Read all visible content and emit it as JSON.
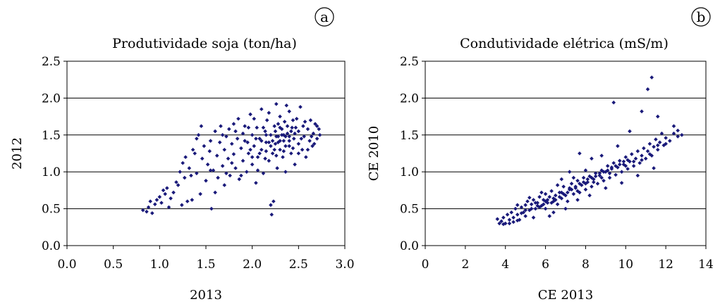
{
  "chart_data": [
    {
      "id": "a",
      "badge": "a",
      "type": "scatter",
      "title": "Produtividade soja (ton/ha)",
      "xlabel": "2013",
      "ylabel": "2012",
      "xlim": [
        0.0,
        3.0
      ],
      "ylim": [
        0.0,
        2.5
      ],
      "xticks": [
        "0.0",
        "0.5",
        "1.0",
        "1.5",
        "2.0",
        "2.5",
        "3.0"
      ],
      "yticks": [
        "0.0",
        "0.5",
        "1.0",
        "1.5",
        "2.0",
        "2.5"
      ],
      "grid": "horizontal",
      "legend": "none",
      "marker_color": "#1a1a7a",
      "points": [
        [
          0.82,
          0.48
        ],
        [
          0.86,
          0.46
        ],
        [
          0.88,
          0.52
        ],
        [
          0.9,
          0.6
        ],
        [
          0.92,
          0.44
        ],
        [
          0.95,
          0.56
        ],
        [
          0.97,
          0.62
        ],
        [
          1.0,
          0.66
        ],
        [
          1.02,
          0.58
        ],
        [
          1.04,
          0.75
        ],
        [
          1.06,
          0.7
        ],
        [
          1.08,
          0.78
        ],
        [
          1.1,
          0.52
        ],
        [
          1.12,
          0.64
        ],
        [
          1.15,
          0.72
        ],
        [
          1.18,
          0.86
        ],
        [
          1.2,
          0.82
        ],
        [
          1.22,
          1.0
        ],
        [
          1.24,
          0.55
        ],
        [
          1.25,
          1.12
        ],
        [
          1.27,
          0.92
        ],
        [
          1.28,
          1.2
        ],
        [
          1.3,
          0.6
        ],
        [
          1.32,
          1.05
        ],
        [
          1.34,
          0.95
        ],
        [
          1.36,
          1.3
        ],
        [
          1.38,
          1.25
        ],
        [
          1.4,
          0.98
        ],
        [
          1.4,
          1.45
        ],
        [
          1.42,
          1.5
        ],
        [
          1.44,
          0.7
        ],
        [
          1.46,
          1.18
        ],
        [
          1.48,
          1.35
        ],
        [
          1.5,
          0.88
        ],
        [
          1.52,
          1.1
        ],
        [
          1.54,
          1.28
        ],
        [
          1.55,
          1.42
        ],
        [
          1.56,
          0.5
        ],
        [
          1.58,
          1.02
        ],
        [
          1.6,
          1.55
        ],
        [
          1.62,
          1.22
        ],
        [
          1.63,
          0.92
        ],
        [
          1.65,
          1.4
        ],
        [
          1.66,
          1.62
        ],
        [
          1.68,
          1.08
        ],
        [
          1.7,
          1.3
        ],
        [
          1.7,
          0.82
        ],
        [
          1.72,
          1.48
        ],
        [
          1.74,
          1.18
        ],
        [
          1.75,
          1.58
        ],
        [
          1.76,
          0.95
        ],
        [
          1.78,
          1.38
        ],
        [
          1.8,
          1.24
        ],
        [
          1.8,
          1.65
        ],
        [
          1.82,
          1.05
        ],
        [
          1.84,
          1.45
        ],
        [
          1.85,
          1.72
        ],
        [
          1.86,
          0.9
        ],
        [
          1.88,
          1.32
        ],
        [
          1.9,
          1.52
        ],
        [
          1.9,
          1.15
        ],
        [
          1.92,
          1.62
        ],
        [
          1.94,
          1.0
        ],
        [
          1.95,
          1.4
        ],
        [
          1.96,
          1.25
        ],
        [
          1.98,
          1.78
        ],
        [
          2.0,
          1.1
        ],
        [
          2.0,
          1.5
        ],
        [
          2.02,
          1.35
        ],
        [
          2.04,
          0.85
        ],
        [
          2.05,
          1.6
        ],
        [
          2.06,
          1.2
        ],
        [
          2.08,
          1.45
        ],
        [
          2.1,
          1.85
        ],
        [
          2.1,
          1.3
        ],
        [
          2.12,
          0.98
        ],
        [
          2.14,
          1.55
        ],
        [
          2.15,
          1.4
        ],
        [
          2.16,
          1.7
        ],
        [
          2.18,
          1.15
        ],
        [
          2.2,
          1.5
        ],
        [
          2.2,
          0.55
        ],
        [
          2.21,
          0.42
        ],
        [
          2.22,
          1.25
        ],
        [
          2.23,
          0.6
        ],
        [
          2.24,
          1.62
        ],
        [
          2.25,
          1.38
        ],
        [
          2.26,
          1.92
        ],
        [
          2.27,
          1.05
        ],
        [
          2.28,
          1.48
        ],
        [
          2.3,
          1.3
        ],
        [
          2.3,
          1.75
        ],
        [
          2.32,
          1.58
        ],
        [
          2.33,
          1.2
        ],
        [
          2.34,
          1.42
        ],
        [
          2.35,
          1.68
        ],
        [
          2.36,
          1.0
        ],
        [
          2.38,
          1.52
        ],
        [
          2.4,
          1.35
        ],
        [
          2.4,
          1.82
        ],
        [
          2.42,
          1.25
        ],
        [
          2.43,
          1.6
        ],
        [
          2.45,
          1.45
        ],
        [
          2.46,
          1.1
        ],
        [
          2.48,
          1.72
        ],
        [
          2.5,
          1.38
        ],
        [
          2.5,
          1.55
        ],
        [
          2.52,
          1.88
        ],
        [
          2.54,
          1.3
        ],
        [
          2.55,
          1.62
        ],
        [
          2.56,
          1.48
        ],
        [
          2.58,
          1.2
        ],
        [
          2.6,
          1.58
        ],
        [
          2.62,
          1.42
        ],
        [
          2.63,
          1.7
        ],
        [
          2.65,
          1.35
        ],
        [
          2.66,
          1.52
        ],
        [
          2.68,
          1.65
        ],
        [
          2.7,
          1.45
        ],
        [
          2.72,
          1.58
        ],
        [
          1.35,
          0.62
        ],
        [
          1.45,
          1.62
        ],
        [
          1.55,
          1.02
        ],
        [
          1.6,
          0.72
        ],
        [
          1.68,
          1.5
        ],
        [
          1.72,
          0.98
        ],
        [
          1.78,
          1.12
        ],
        [
          1.82,
          1.55
        ],
        [
          1.88,
          0.95
        ],
        [
          1.92,
          1.42
        ],
        [
          1.96,
          1.6
        ],
        [
          2.02,
          1.72
        ],
        [
          2.06,
          1.02
        ],
        [
          2.12,
          1.6
        ],
        [
          2.15,
          1.28
        ],
        [
          2.18,
          1.8
        ],
        [
          2.22,
          1.42
        ],
        [
          2.26,
          1.22
        ],
        [
          2.3,
          1.6
        ],
        [
          2.34,
          1.28
        ],
        [
          2.37,
          1.9
        ],
        [
          2.4,
          1.48
        ],
        [
          2.44,
          1.32
        ],
        [
          2.47,
          1.6
        ],
        [
          2.5,
          1.25
        ],
        [
          2.53,
          1.45
        ],
        [
          2.57,
          1.68
        ],
        [
          2.6,
          1.3
        ],
        [
          2.64,
          1.48
        ],
        [
          2.67,
          1.38
        ],
        [
          2.7,
          1.62
        ],
        [
          2.73,
          1.5
        ],
        [
          2.15,
          1.5
        ],
        [
          2.2,
          1.35
        ],
        [
          2.25,
          1.55
        ],
        [
          2.28,
          1.4
        ],
        [
          2.32,
          1.5
        ],
        [
          2.36,
          1.35
        ],
        [
          2.38,
          1.62
        ],
        [
          2.42,
          1.55
        ],
        [
          2.08,
          1.25
        ],
        [
          2.1,
          1.42
        ],
        [
          2.14,
          1.18
        ],
        [
          2.18,
          1.4
        ],
        [
          2.24,
          1.3
        ],
        [
          2.28,
          1.65
        ],
        [
          2.34,
          1.5
        ],
        [
          2.44,
          1.7
        ],
        [
          1.98,
          1.3
        ],
        [
          2.0,
          1.2
        ],
        [
          2.04,
          1.45
        ],
        [
          2.26,
          1.48
        ],
        [
          2.3,
          1.42
        ],
        [
          2.36,
          1.48
        ],
        [
          2.4,
          1.42
        ],
        [
          2.46,
          1.52
        ]
      ]
    },
    {
      "id": "b",
      "badge": "b",
      "type": "scatter",
      "title": "Condutividade elétrica (mS/m)",
      "xlabel": "CE 2013",
      "ylabel": "CE 2010",
      "xlim": [
        0,
        14
      ],
      "ylim": [
        0.0,
        2.5
      ],
      "xticks": [
        "0",
        "2",
        "4",
        "6",
        "8",
        "10",
        "12",
        "14"
      ],
      "yticks": [
        "0.0",
        "0.5",
        "1.0",
        "1.5",
        "2.0",
        "2.5"
      ],
      "grid": "horizontal",
      "legend": "none",
      "marker_color": "#1a1a7a",
      "points": [
        [
          3.6,
          0.36
        ],
        [
          3.7,
          0.3
        ],
        [
          3.8,
          0.33
        ],
        [
          3.9,
          0.38
        ],
        [
          4.0,
          0.3
        ],
        [
          4.1,
          0.42
        ],
        [
          4.2,
          0.35
        ],
        [
          4.3,
          0.45
        ],
        [
          4.4,
          0.38
        ],
        [
          4.5,
          0.5
        ],
        [
          4.6,
          0.42
        ],
        [
          4.7,
          0.35
        ],
        [
          4.8,
          0.52
        ],
        [
          4.9,
          0.45
        ],
        [
          5.0,
          0.55
        ],
        [
          5.0,
          0.4
        ],
        [
          5.1,
          0.6
        ],
        [
          5.2,
          0.48
        ],
        [
          5.3,
          0.56
        ],
        [
          5.4,
          0.62
        ],
        [
          5.5,
          0.5
        ],
        [
          5.6,
          0.58
        ],
        [
          5.7,
          0.66
        ],
        [
          5.8,
          0.54
        ],
        [
          5.9,
          0.62
        ],
        [
          6.0,
          0.7
        ],
        [
          6.0,
          0.5
        ],
        [
          6.1,
          0.58
        ],
        [
          6.2,
          0.66
        ],
        [
          6.3,
          0.74
        ],
        [
          6.4,
          0.6
        ],
        [
          6.5,
          0.68
        ],
        [
          6.6,
          0.56
        ],
        [
          6.7,
          0.72
        ],
        [
          6.8,
          0.64
        ],
        [
          6.9,
          0.8
        ],
        [
          7.0,
          0.68
        ],
        [
          7.1,
          0.6
        ],
        [
          7.2,
          0.76
        ],
        [
          7.3,
          0.84
        ],
        [
          7.4,
          0.7
        ],
        [
          7.5,
          0.78
        ],
        [
          7.6,
          0.88
        ],
        [
          7.7,
          0.72
        ],
        [
          7.8,
          0.82
        ],
        [
          7.9,
          0.92
        ],
        [
          8.0,
          0.76
        ],
        [
          8.1,
          0.86
        ],
        [
          8.2,
          0.94
        ],
        [
          8.3,
          0.8
        ],
        [
          8.4,
          0.9
        ],
        [
          8.5,
          0.98
        ],
        [
          8.6,
          0.84
        ],
        [
          8.7,
          0.95
        ],
        [
          8.8,
          1.02
        ],
        [
          8.9,
          0.88
        ],
        [
          9.0,
          1.0
        ],
        [
          9.1,
          1.08
        ],
        [
          9.2,
          0.92
        ],
        [
          9.3,
          1.04
        ],
        [
          9.4,
          1.12
        ],
        [
          9.5,
          0.96
        ],
        [
          9.6,
          1.06
        ],
        [
          9.7,
          1.15
        ],
        [
          9.8,
          1.0
        ],
        [
          9.9,
          1.1
        ],
        [
          10.0,
          1.2
        ],
        [
          10.1,
          1.04
        ],
        [
          10.2,
          1.14
        ],
        [
          10.3,
          1.24
        ],
        [
          10.4,
          1.08
        ],
        [
          10.5,
          1.18
        ],
        [
          10.6,
          1.28
        ],
        [
          10.7,
          1.12
        ],
        [
          10.8,
          1.22
        ],
        [
          10.9,
          1.32
        ],
        [
          11.0,
          1.18
        ],
        [
          11.1,
          1.28
        ],
        [
          11.2,
          1.38
        ],
        [
          11.3,
          1.22
        ],
        [
          11.4,
          1.34
        ],
        [
          11.5,
          1.44
        ],
        [
          11.6,
          1.3
        ],
        [
          11.7,
          1.4
        ],
        [
          11.8,
          1.52
        ],
        [
          11.9,
          1.36
        ],
        [
          12.0,
          1.46
        ],
        [
          12.2,
          1.42
        ],
        [
          12.4,
          1.52
        ],
        [
          12.6,
          1.48
        ],
        [
          12.8,
          1.5
        ],
        [
          11.3,
          2.28
        ],
        [
          11.1,
          2.12
        ],
        [
          9.4,
          1.94
        ],
        [
          10.8,
          1.82
        ],
        [
          10.2,
          1.55
        ],
        [
          11.6,
          1.75
        ],
        [
          12.4,
          1.62
        ],
        [
          7.7,
          1.25
        ],
        [
          8.3,
          1.18
        ],
        [
          7.2,
          1.0
        ],
        [
          6.8,
          0.9
        ],
        [
          8.8,
          1.22
        ],
        [
          9.6,
          1.35
        ],
        [
          6.4,
          0.45
        ],
        [
          6.2,
          0.4
        ],
        [
          5.4,
          0.38
        ],
        [
          7.0,
          0.5
        ],
        [
          7.6,
          0.62
        ],
        [
          8.2,
          0.68
        ],
        [
          9.0,
          0.78
        ],
        [
          9.8,
          0.85
        ],
        [
          10.6,
          0.95
        ],
        [
          11.4,
          1.05
        ],
        [
          4.6,
          0.55
        ],
        [
          5.2,
          0.65
        ],
        [
          5.8,
          0.72
        ],
        [
          6.6,
          0.82
        ],
        [
          7.4,
          0.92
        ],
        [
          8.0,
          1.02
        ],
        [
          5.5,
          0.58
        ],
        [
          5.7,
          0.52
        ],
        [
          5.9,
          0.56
        ],
        [
          6.1,
          0.62
        ],
        [
          6.3,
          0.58
        ],
        [
          6.5,
          0.62
        ],
        [
          6.7,
          0.66
        ],
        [
          6.9,
          0.7
        ],
        [
          7.1,
          0.72
        ],
        [
          7.3,
          0.76
        ],
        [
          7.5,
          0.8
        ],
        [
          7.7,
          0.84
        ],
        [
          7.9,
          0.86
        ],
        [
          8.1,
          0.9
        ],
        [
          8.3,
          0.92
        ],
        [
          8.5,
          0.94
        ],
        [
          8.7,
          0.98
        ],
        [
          8.9,
          1.0
        ],
        [
          9.1,
          1.02
        ],
        [
          9.3,
          1.06
        ],
        [
          9.5,
          1.08
        ],
        [
          9.7,
          1.1
        ],
        [
          9.9,
          1.14
        ],
        [
          10.1,
          1.16
        ],
        [
          4.8,
          0.44
        ],
        [
          5.0,
          0.48
        ],
        [
          5.3,
          0.5
        ],
        [
          5.6,
          0.54
        ],
        [
          6.0,
          0.6
        ],
        [
          6.4,
          0.64
        ],
        [
          6.8,
          0.72
        ],
        [
          7.2,
          0.78
        ],
        [
          7.6,
          0.74
        ],
        [
          8.0,
          0.84
        ],
        [
          8.4,
          0.86
        ],
        [
          8.8,
          0.92
        ],
        [
          9.2,
          0.98
        ],
        [
          10.0,
          1.08
        ],
        [
          10.4,
          1.14
        ],
        [
          10.8,
          1.16
        ],
        [
          11.2,
          1.24
        ],
        [
          11.6,
          1.36
        ],
        [
          12.0,
          1.38
        ],
        [
          12.6,
          1.56
        ],
        [
          4.2,
          0.3
        ],
        [
          4.4,
          0.32
        ],
        [
          3.9,
          0.29
        ],
        [
          4.6,
          0.34
        ]
      ]
    }
  ]
}
